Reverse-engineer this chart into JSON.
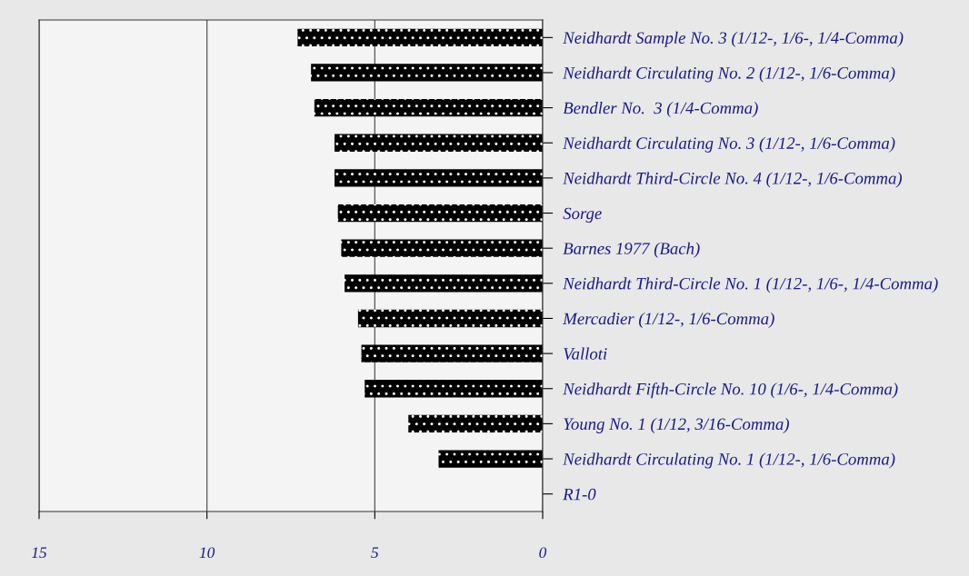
{
  "chart_data": {
    "type": "bar",
    "orientation": "horizontal",
    "categories": [
      "Neidhardt Sample No. 3 (1/12-, 1/6-, 1/4-Comma)",
      "Neidhardt Circulating No. 2 (1/12-, 1/6-Comma)",
      "Bendler No.  3 (1/4-Comma)",
      "Neidhardt Circulating No. 3 (1/12-, 1/6-Comma)",
      "Neidhardt Third-Circle No. 4 (1/12-, 1/6-Comma)",
      "Sorge",
      "Barnes 1977 (Bach)",
      "Neidhardt Third-Circle No. 1 (1/12-, 1/6-, 1/4-Comma)",
      "Mercadier (1/12-, 1/6-Comma)",
      "Valloti",
      "Neidhardt Fifth-Circle No. 10 (1/6-, 1/4-Comma)",
      "Young No. 1 (1/12, 3/16-Comma)",
      "Neidhardt Circulating No. 1 (1/12-, 1/6-Comma)",
      "R1-0"
    ],
    "values": [
      7.3,
      6.9,
      6.8,
      6.2,
      6.2,
      6.1,
      6.0,
      5.9,
      5.5,
      5.4,
      5.3,
      4.0,
      3.1,
      0
    ],
    "color": "#000000",
    "xlim": [
      15,
      0
    ],
    "xticks": [
      15,
      10,
      5,
      0
    ],
    "grid": "x"
  }
}
